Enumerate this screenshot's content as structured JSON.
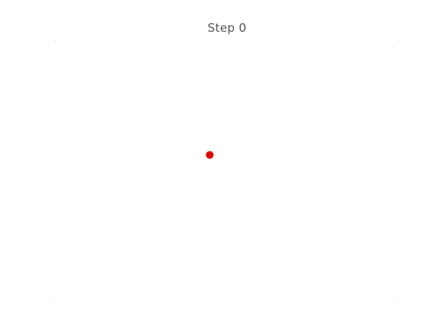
{
  "title": "Step 0",
  "agent": {
    "icon": "dot-marker",
    "color": "#e00000"
  },
  "corner_marks": {
    "color": "#e6e6e6"
  },
  "background_color": "#ffffff"
}
